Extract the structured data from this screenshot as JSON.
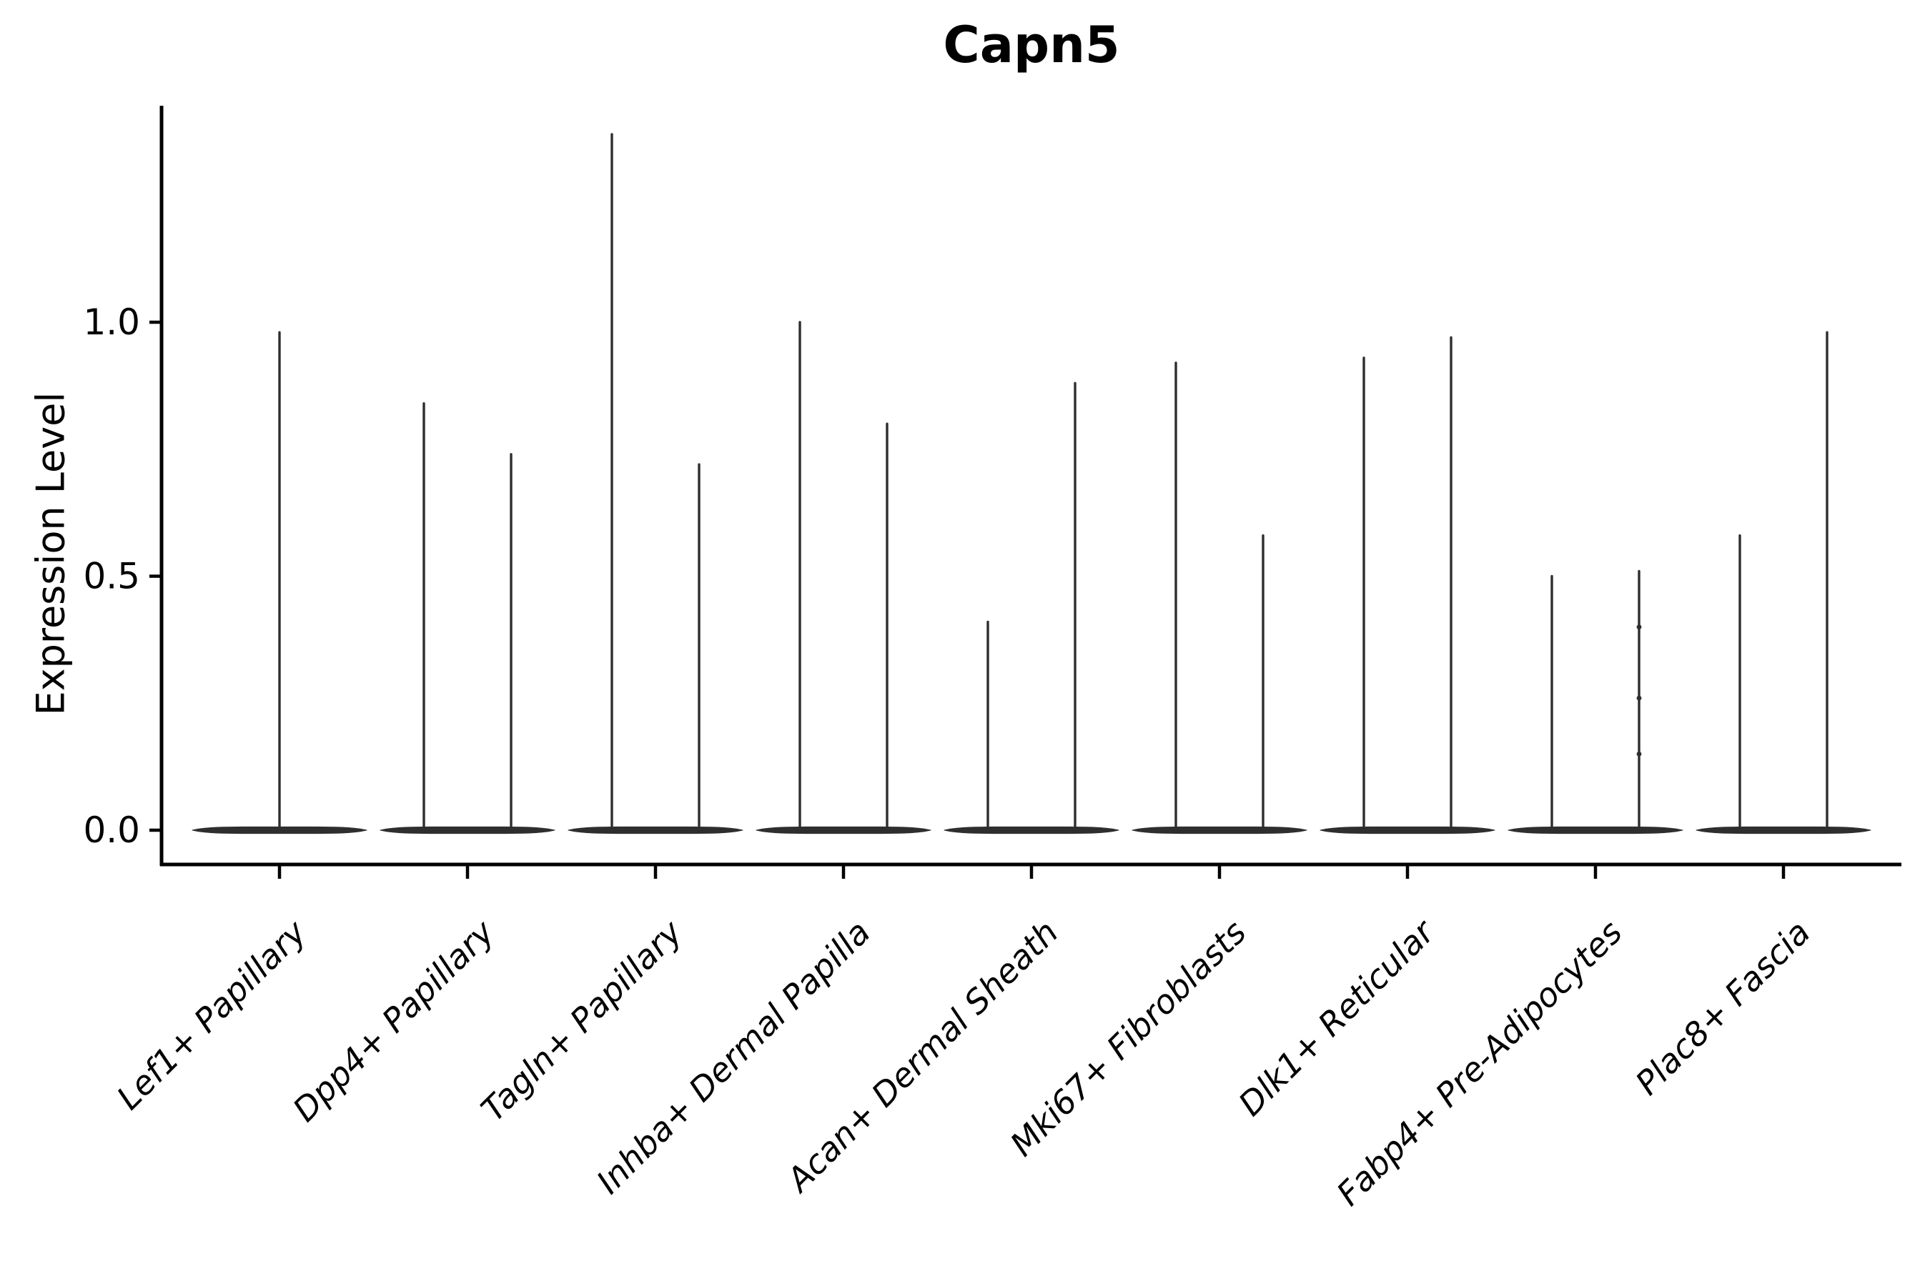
{
  "chart_data": {
    "type": "violin",
    "title": "Capn5",
    "ylabel": "Expression Level",
    "xlabel": "",
    "ytick_labels": [
      "0.0",
      "0.5",
      "1.0"
    ],
    "ytick_values": [
      0.0,
      0.5,
      1.0
    ],
    "ylim": [
      -0.07,
      1.43
    ],
    "grid": false,
    "legend_position": "none",
    "violin_color": "#2e2e2e",
    "axis_color": "#000000",
    "text_color": "#000000",
    "categories": [
      {
        "label": "Lef1+ Papillary",
        "spikes": [
          0.98
        ]
      },
      {
        "label": "Dpp4+ Papillary",
        "spikes": [
          0.84,
          0.74
        ]
      },
      {
        "label": "Tagln+ Papillary",
        "spikes": [
          1.37,
          0.72
        ]
      },
      {
        "label": "Inhba+ Dermal Papilla",
        "spikes": [
          1.0,
          0.8
        ]
      },
      {
        "label": "Acan+ Dermal Sheath",
        "spikes": [
          0.41,
          0.88
        ]
      },
      {
        "label": "Mki67+ Fibroblasts",
        "spikes": [
          0.92,
          0.58
        ]
      },
      {
        "label": "Dlk1+ Reticular",
        "spikes": [
          0.93,
          0.97
        ]
      },
      {
        "label": "Fabp4+ Pre-Adipocytes",
        "spikes": [
          0.5,
          0.51
        ],
        "dots": [
          {
            "violin": 1,
            "values": [
              0.4,
              0.26,
              0.15
            ]
          }
        ]
      },
      {
        "label": "Plac8+ Fascia",
        "spikes": [
          0.58,
          0.98
        ]
      }
    ]
  }
}
